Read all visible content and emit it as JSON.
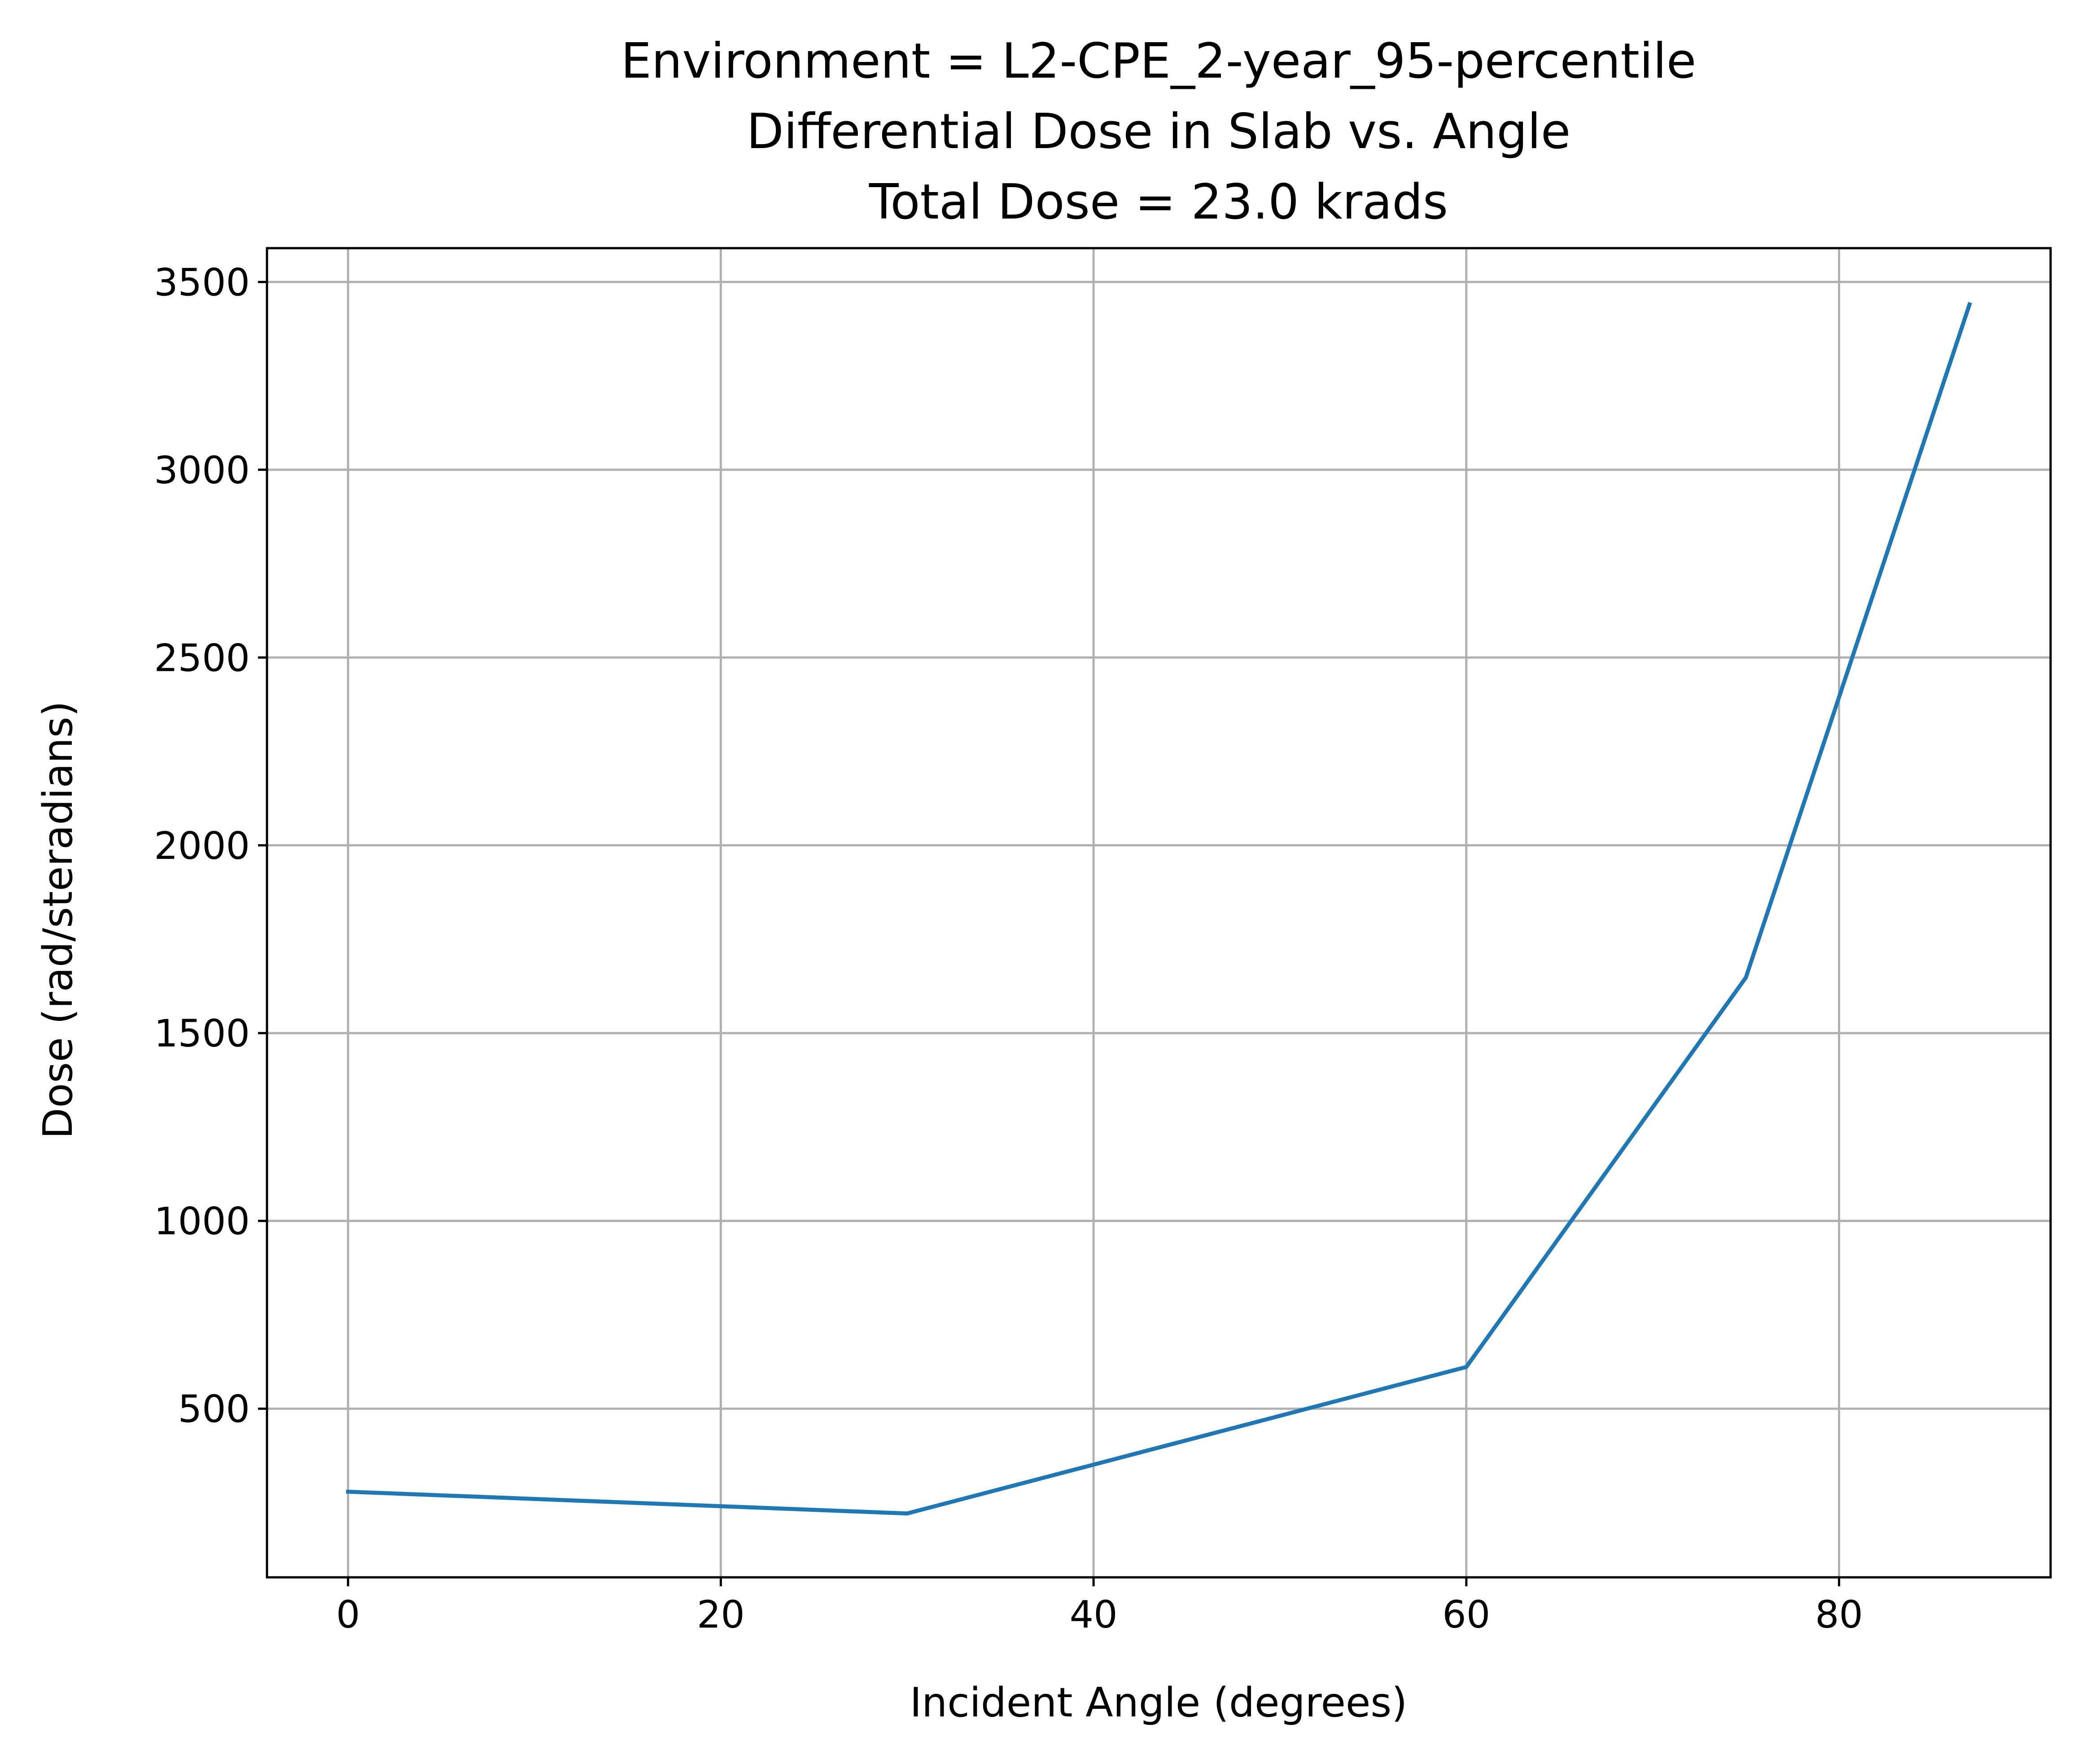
{
  "chart_data": {
    "type": "line",
    "title_lines": [
      "Environment = L2-CPE_2-year_95-percentile",
      "Differential Dose in Slab vs. Angle",
      "Total Dose = 23.0 krads"
    ],
    "xlabel": "Incident Angle (degrees)",
    "ylabel": "Dose (rad/steradians)",
    "xlim": [
      -4.35,
      91.35
    ],
    "ylim": [
      51,
      3590
    ],
    "xticks": [
      0,
      20,
      40,
      60,
      80
    ],
    "yticks": [
      500,
      1000,
      1500,
      2000,
      2500,
      3000,
      3500
    ],
    "grid": true,
    "series": [
      {
        "color": "#1f77b4",
        "x": [
          0,
          30,
          60,
          75,
          87
        ],
        "y": [
          279,
          221,
          611,
          1648,
          3440
        ]
      }
    ]
  }
}
